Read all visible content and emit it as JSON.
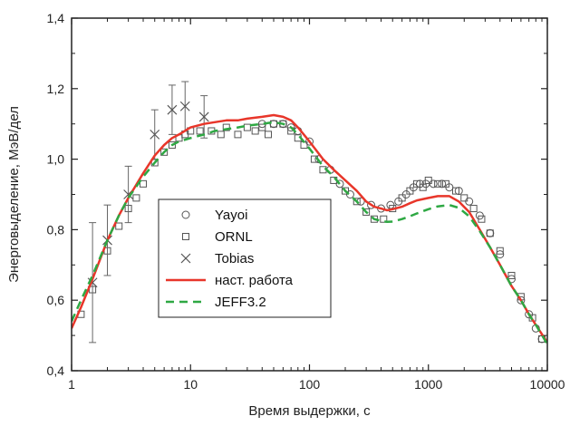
{
  "chart_data": {
    "type": "scatter",
    "xlabel": "Время выдержки, с",
    "ylabel": "Энерговыделение, МэВ/дел",
    "xscale": "log",
    "xlim": [
      1,
      10000
    ],
    "ylim": [
      0.4,
      1.4
    ],
    "xticks": [
      1,
      10,
      100,
      1000,
      10000
    ],
    "xtick_labels": [
      "1",
      "10",
      "100",
      "1000",
      "10000"
    ],
    "yticks": [
      0.4,
      0.6,
      0.8,
      1.0,
      1.2,
      1.4
    ],
    "ytick_labels": [
      "0,4",
      "0,6",
      "0,8",
      "1,0",
      "1,2",
      "1,4"
    ],
    "grid": false,
    "legend_position": "center-left",
    "series": [
      {
        "name": "Yayoi",
        "kind": "markers",
        "marker": "circle",
        "color": "#555555",
        "x": [
          40,
          50,
          60,
          70,
          80,
          100,
          120,
          150,
          180,
          220,
          270,
          330,
          400,
          480,
          560,
          650,
          750,
          850,
          950,
          1100,
          1300,
          1500,
          1800,
          2200,
          2700,
          3300,
          4000,
          5000,
          6000,
          7000,
          8000,
          9000
        ],
        "y": [
          1.1,
          1.1,
          1.1,
          1.09,
          1.08,
          1.05,
          1.0,
          0.97,
          0.93,
          0.9,
          0.88,
          0.87,
          0.86,
          0.87,
          0.88,
          0.9,
          0.92,
          0.93,
          0.93,
          0.93,
          0.93,
          0.92,
          0.91,
          0.88,
          0.84,
          0.79,
          0.73,
          0.66,
          0.6,
          0.56,
          0.52,
          0.49
        ]
      },
      {
        "name": "ORNL",
        "kind": "markers",
        "marker": "square",
        "color": "#555555",
        "x": [
          1.2,
          1.5,
          2,
          2.5,
          3,
          3.5,
          4,
          5,
          6,
          7,
          8,
          9,
          10,
          12,
          15,
          18,
          20,
          25,
          30,
          35,
          40,
          45,
          50,
          60,
          70,
          80,
          90,
          110,
          130,
          160,
          200,
          250,
          300,
          350,
          420,
          500,
          600,
          700,
          800,
          900,
          1000,
          1200,
          1400,
          1700,
          2000,
          2400,
          2800,
          3300,
          4000,
          5000,
          6000,
          7500,
          9000
        ],
        "y": [
          0.56,
          0.63,
          0.74,
          0.81,
          0.86,
          0.89,
          0.93,
          0.99,
          1.02,
          1.04,
          1.06,
          1.07,
          1.08,
          1.08,
          1.08,
          1.07,
          1.09,
          1.07,
          1.09,
          1.08,
          1.09,
          1.07,
          1.1,
          1.1,
          1.08,
          1.06,
          1.04,
          1.0,
          0.97,
          0.94,
          0.91,
          0.88,
          0.85,
          0.83,
          0.83,
          0.86,
          0.89,
          0.91,
          0.93,
          0.92,
          0.94,
          0.93,
          0.93,
          0.91,
          0.89,
          0.86,
          0.83,
          0.79,
          0.74,
          0.67,
          0.61,
          0.55,
          0.49
        ]
      },
      {
        "name": "Tobias",
        "kind": "markers",
        "marker": "x",
        "color": "#555555",
        "x": [
          1.5,
          2,
          3,
          5,
          7,
          9,
          13
        ],
        "y": [
          0.65,
          0.77,
          0.9,
          1.07,
          1.14,
          1.15,
          1.12
        ],
        "err": [
          0.17,
          0.1,
          0.08,
          0.07,
          0.07,
          0.07,
          0.06
        ]
      },
      {
        "name": "наст. работа",
        "kind": "line",
        "color": "#e8362a",
        "x": [
          1,
          1.2,
          1.5,
          2,
          2.5,
          3,
          4,
          5,
          6,
          7,
          8,
          10,
          13,
          16,
          20,
          25,
          30,
          40,
          50,
          60,
          70,
          80,
          100,
          130,
          160,
          200,
          250,
          300,
          350,
          400,
          450,
          500,
          600,
          700,
          800,
          1000,
          1200,
          1500,
          1800,
          2200,
          2700,
          3300,
          4000,
          5000,
          6000,
          7000,
          8000,
          10000
        ],
        "y": [
          0.52,
          0.58,
          0.66,
          0.77,
          0.84,
          0.89,
          0.96,
          1.01,
          1.04,
          1.06,
          1.07,
          1.09,
          1.1,
          1.105,
          1.11,
          1.11,
          1.115,
          1.12,
          1.125,
          1.12,
          1.11,
          1.09,
          1.05,
          1.0,
          0.97,
          0.94,
          0.91,
          0.88,
          0.865,
          0.86,
          0.855,
          0.858,
          0.865,
          0.875,
          0.883,
          0.89,
          0.895,
          0.895,
          0.88,
          0.85,
          0.8,
          0.75,
          0.7,
          0.64,
          0.6,
          0.56,
          0.53,
          0.48
        ]
      },
      {
        "name": "JEFF3.2",
        "kind": "line",
        "style": "dashed",
        "color": "#2ea843",
        "x": [
          1,
          1.2,
          1.5,
          2,
          2.5,
          3,
          4,
          5,
          6,
          7,
          8,
          10,
          13,
          16,
          20,
          25,
          30,
          40,
          50,
          60,
          70,
          80,
          100,
          130,
          160,
          200,
          250,
          300,
          350,
          400,
          450,
          500,
          600,
          700,
          800,
          1000,
          1200,
          1500,
          1800,
          2200,
          2700,
          3300,
          4000,
          5000,
          6000,
          7000,
          8000,
          10000
        ],
        "y": [
          0.54,
          0.6,
          0.67,
          0.77,
          0.84,
          0.89,
          0.95,
          0.99,
          1.02,
          1.04,
          1.05,
          1.06,
          1.07,
          1.08,
          1.085,
          1.09,
          1.095,
          1.1,
          1.105,
          1.1,
          1.09,
          1.07,
          1.03,
          0.98,
          0.95,
          0.91,
          0.88,
          0.85,
          0.83,
          0.825,
          0.822,
          0.823,
          0.83,
          0.838,
          0.846,
          0.858,
          0.866,
          0.87,
          0.862,
          0.838,
          0.796,
          0.75,
          0.7,
          0.64,
          0.6,
          0.56,
          0.53,
          0.475
        ]
      }
    ]
  }
}
